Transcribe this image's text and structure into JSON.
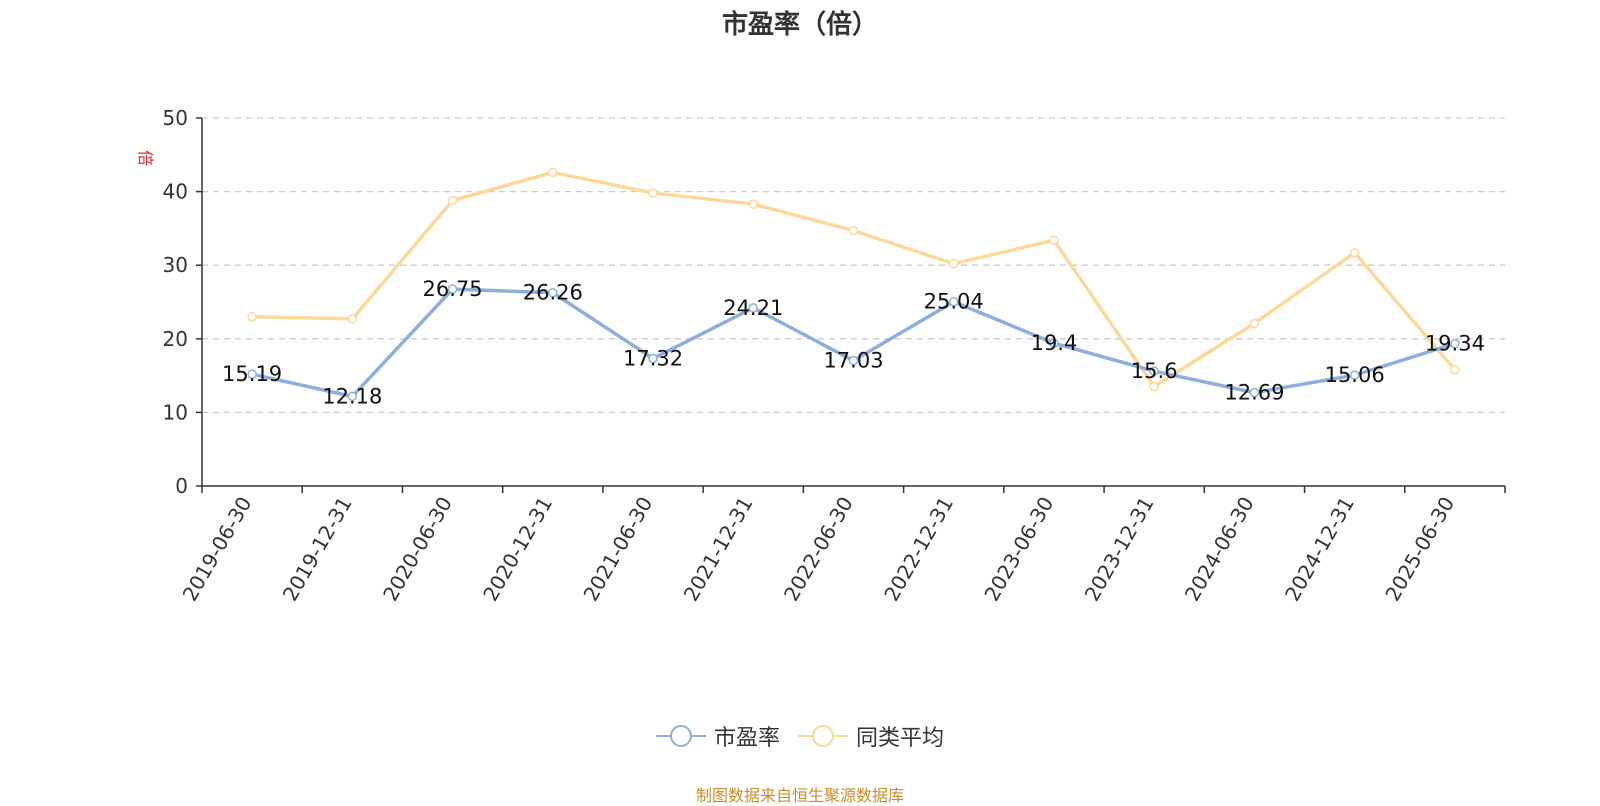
{
  "chart_data": {
    "type": "line",
    "title": "市盈率（倍）",
    "ylabel": "倍",
    "xlabel": "",
    "ylim": [
      0,
      50
    ],
    "yticks": [
      0,
      10,
      20,
      30,
      40,
      50
    ],
    "grid": true,
    "legend_position": "bottom",
    "categories": [
      "2019-06-30",
      "2019-12-31",
      "2020-06-30",
      "2020-12-31",
      "2021-06-30",
      "2021-12-31",
      "2022-06-30",
      "2022-12-31",
      "2023-06-30",
      "2023-12-31",
      "2024-06-30",
      "2024-12-31",
      "2025-06-30"
    ],
    "series": [
      {
        "name": "市盈率",
        "color": "#8eaedb",
        "show_labels": true,
        "values": [
          15.19,
          12.18,
          26.75,
          26.26,
          17.32,
          24.21,
          17.03,
          25.04,
          19.4,
          15.6,
          12.69,
          15.06,
          19.34
        ]
      },
      {
        "name": "同类平均",
        "color": "#fcd998",
        "show_labels": false,
        "values": [
          23.0,
          22.7,
          38.8,
          42.6,
          39.8,
          38.3,
          34.7,
          30.2,
          33.4,
          13.5,
          22.1,
          31.7,
          15.8
        ]
      }
    ],
    "source": "制图数据来自恒生聚源数据库"
  },
  "colors": {
    "axis": "#333333",
    "grid": "#cccccc",
    "ylabel": "#e02020",
    "source": "#c98d2a"
  }
}
